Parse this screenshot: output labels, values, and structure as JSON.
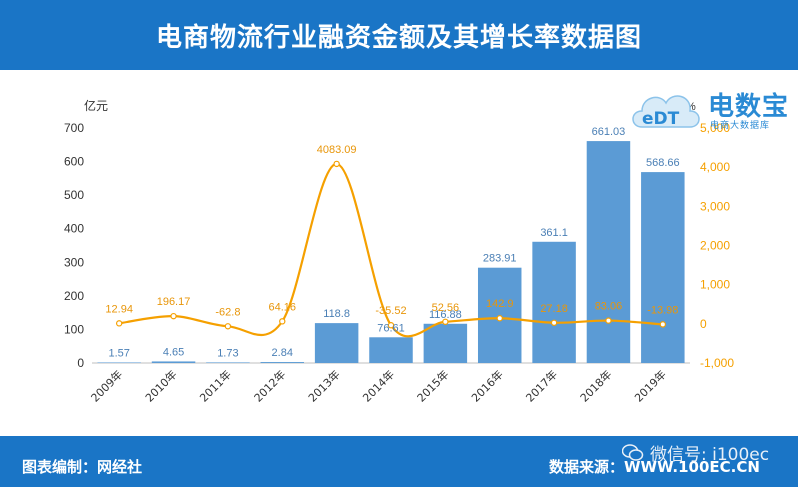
{
  "header": {
    "title": "电商物流行业融资金额及其增长率数据图"
  },
  "footer": {
    "left": "图表编制：网经社",
    "right": "数据来源：WWW.100EC.CN"
  },
  "watermark": {
    "text": "微信号: i100ec",
    "icon": "wechat-icon"
  },
  "logo": {
    "main": "电数宝",
    "sub": "电商大数据库",
    "mark": "EDT"
  },
  "colors": {
    "bar": "#5b9bd5",
    "line": "#f5a000",
    "header": "#1a75c6",
    "bar_label": "#4a7fb5",
    "line_label": "#e8960a"
  },
  "chart_data": {
    "type": "bar",
    "categories": [
      "2009年",
      "2010年",
      "2011年",
      "2012年",
      "2013年",
      "2014年",
      "2015年",
      "2016年",
      "2017年",
      "2018年",
      "2019年"
    ],
    "series": [
      {
        "values": [
          1.57,
          4.65,
          1.73,
          2.84,
          118.8,
          76.61,
          116.88,
          283.91,
          361.1,
          661.03,
          568.66
        ],
        "axis": "left",
        "kind": "bar"
      },
      {
        "values": [
          12.94,
          196.17,
          -62.8,
          64.16,
          4083.09,
          -35.52,
          52.56,
          142.9,
          27.18,
          83.06,
          -13.98
        ],
        "axis": "right",
        "kind": "line"
      }
    ],
    "bar_labels": [
      "1.57",
      "4.65",
      "1.73",
      "2.84",
      "118.8",
      "76.61",
      "116.88",
      "283.91",
      "361.1",
      "661.03",
      "568.66"
    ],
    "line_labels": [
      "12.94",
      "196.17",
      "-62.8",
      "64.16",
      "4083.09",
      "-35.52",
      "52.56",
      "142.9",
      "27.18",
      "83.06",
      "-13.98"
    ],
    "ylabel": "亿元",
    "y2label": "%",
    "ylim": [
      0,
      700
    ],
    "y_ticks": [
      "0",
      "100",
      "200",
      "300",
      "400",
      "500",
      "600",
      "700"
    ],
    "y2lim": [
      -1000,
      5000
    ],
    "y2_ticks": [
      "-1,000",
      "0",
      "1,000",
      "2,000",
      "3,000",
      "4,000",
      "5,000"
    ],
    "grid": false,
    "legend": "none"
  }
}
